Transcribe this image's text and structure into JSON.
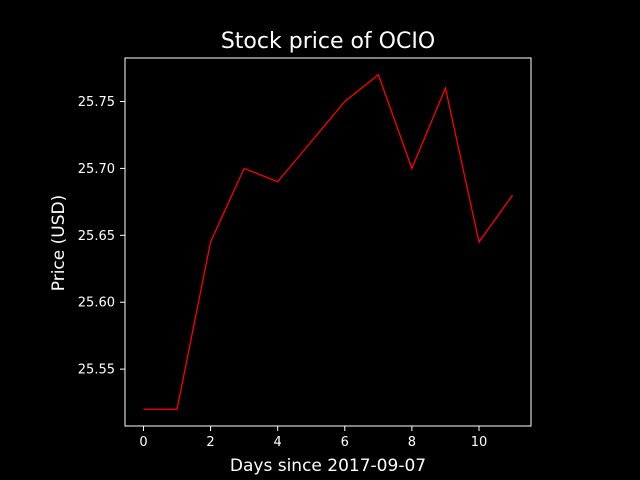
{
  "chart_data": {
    "type": "line",
    "title": "Stock price of OCIO",
    "xlabel": "Days since 2017-09-07",
    "ylabel": "Price (USD)",
    "x": [
      0,
      1,
      2,
      3,
      4,
      5,
      6,
      7,
      8,
      9,
      10,
      11
    ],
    "series": [
      {
        "values": [
          25.52,
          25.52,
          25.645,
          25.7,
          25.69,
          25.72,
          25.75,
          25.77,
          25.7,
          25.76,
          25.645,
          25.68
        ],
        "color": "#ff0000"
      }
    ],
    "xlim": [
      -0.55,
      11.55
    ],
    "ylim": [
      25.5075,
      25.7825
    ],
    "xticks": [
      0,
      2,
      4,
      6,
      8,
      10
    ],
    "xtick_labels": [
      "0",
      "2",
      "4",
      "6",
      "8",
      "10"
    ],
    "yticks": [
      25.55,
      25.6,
      25.65,
      25.7,
      25.75
    ],
    "ytick_labels": [
      "25.55",
      "25.60",
      "25.65",
      "25.70",
      "25.75"
    ],
    "grid": false,
    "background": "#000000",
    "axes_color": "#ffffff",
    "text_color": "#ffffff"
  }
}
